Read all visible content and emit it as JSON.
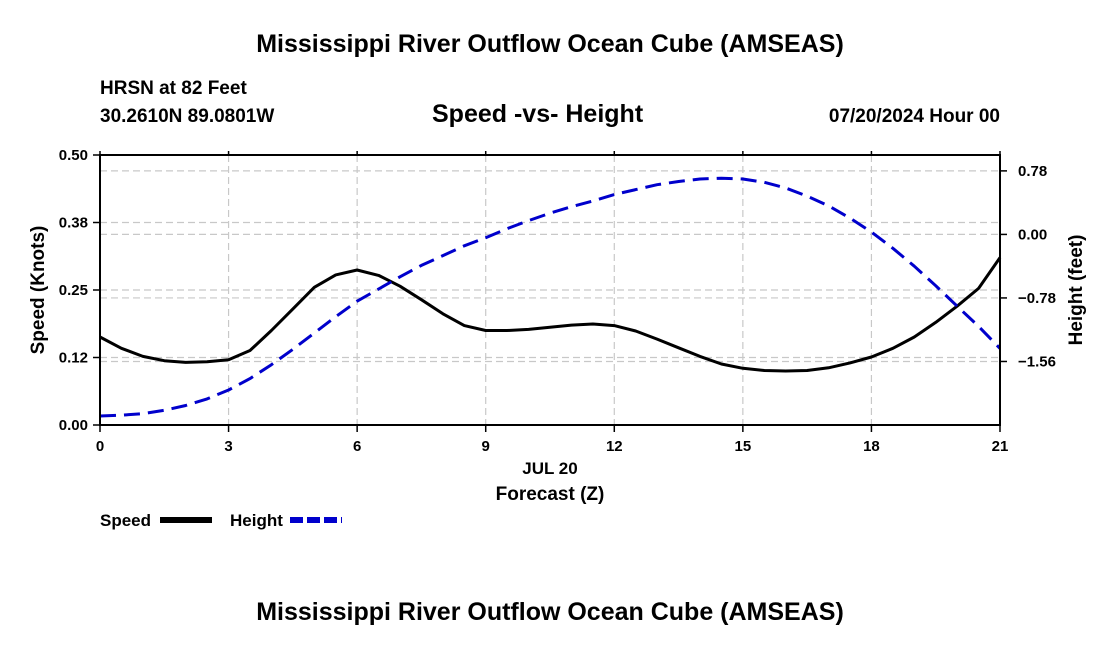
{
  "page": {
    "title": "Mississippi River Outflow Ocean Cube (AMSEAS)",
    "station": "HRSN at 82 Feet",
    "coords": "30.2610N  89.0801W",
    "subtitle": "Speed -vs- Height",
    "datetime": "07/20/2024 Hour 00",
    "footer_title": "Mississippi River Outflow Ocean Cube (AMSEAS)"
  },
  "chart_data": {
    "type": "line",
    "title": "Speed -vs- Height",
    "xlabel": "Forecast (Z)",
    "x_date_label": "JUL 20",
    "ylabel": "Speed (Knots)",
    "y2label": "Height (feet)",
    "xlim": [
      0,
      21
    ],
    "ylim": [
      0,
      0.5
    ],
    "y2lim": [
      -2.34,
      0.975
    ],
    "xticks": [
      0,
      3,
      6,
      9,
      12,
      15,
      18,
      21
    ],
    "xtick_labels": [
      "0",
      "3",
      "6",
      "9",
      "12",
      "15",
      "18",
      "21"
    ],
    "yticks": [
      0,
      0.125,
      0.25,
      0.375,
      0.5
    ],
    "ytick_labels": [
      "0.00",
      "0.12",
      "0.25",
      "0.38",
      "0.50"
    ],
    "y2ticks": [
      -1.56,
      -0.78,
      0,
      0.78
    ],
    "y2tick_labels": [
      "−1.56",
      "−0.78",
      "0.00",
      "0.78"
    ],
    "grid": true,
    "legend": "bottom-left",
    "series": [
      {
        "name": "Speed",
        "axis": "left",
        "color": "#000000",
        "dash": "solid",
        "x": [
          0,
          0.5,
          1,
          1.5,
          2,
          2.5,
          3,
          3.5,
          4,
          4.5,
          5,
          5.5,
          6,
          6.5,
          7,
          7.5,
          8,
          8.5,
          9,
          9.5,
          10,
          10.5,
          11,
          11.5,
          12,
          12.5,
          13,
          13.5,
          14,
          14.5,
          15,
          15.5,
          16,
          16.5,
          17,
          17.5,
          18,
          18.5,
          19,
          19.5,
          20,
          20.5,
          21
        ],
        "values": [
          0.163,
          0.142,
          0.127,
          0.119,
          0.116,
          0.117,
          0.121,
          0.138,
          0.175,
          0.215,
          0.255,
          0.278,
          0.287,
          0.277,
          0.257,
          0.232,
          0.206,
          0.184,
          0.175,
          0.175,
          0.177,
          0.181,
          0.185,
          0.187,
          0.184,
          0.174,
          0.159,
          0.143,
          0.127,
          0.113,
          0.105,
          0.101,
          0.1,
          0.101,
          0.106,
          0.115,
          0.126,
          0.142,
          0.163,
          0.19,
          0.22,
          0.253,
          0.31
        ]
      },
      {
        "name": "Height",
        "axis": "right",
        "color": "#0000cc",
        "dash": "dashed",
        "x": [
          0,
          0.5,
          1,
          1.5,
          2,
          2.5,
          3,
          3.5,
          4,
          4.5,
          5,
          5.5,
          6,
          6.5,
          7,
          7.5,
          8,
          8.5,
          9,
          9.5,
          10,
          10.5,
          11,
          11.5,
          12,
          12.5,
          13,
          13.5,
          14,
          14.5,
          15,
          15.5,
          16,
          16.5,
          17,
          17.5,
          18,
          18.5,
          19,
          19.5,
          20,
          20.5,
          21
        ],
        "values": [
          -2.23,
          -2.22,
          -2.2,
          -2.16,
          -2.1,
          -2.02,
          -1.91,
          -1.77,
          -1.6,
          -1.41,
          -1.21,
          -1.01,
          -0.82,
          -0.67,
          -0.52,
          -0.38,
          -0.26,
          -0.14,
          -0.04,
          0.07,
          0.17,
          0.26,
          0.34,
          0.41,
          0.49,
          0.55,
          0.61,
          0.65,
          0.68,
          0.69,
          0.68,
          0.64,
          0.57,
          0.47,
          0.35,
          0.2,
          0.03,
          -0.17,
          -0.39,
          -0.63,
          -0.88,
          -1.13,
          -1.4
        ]
      }
    ]
  }
}
